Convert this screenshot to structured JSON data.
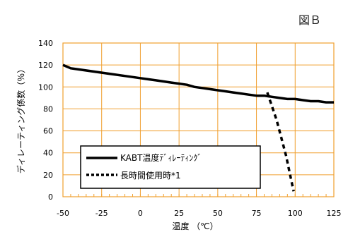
{
  "figure_label": "図Ｂ",
  "chart_data": {
    "type": "line",
    "xlabel": "温度 （℃）",
    "ylabel": "ディレーティング係数（％）",
    "xlim": [
      -50,
      125
    ],
    "ylim": [
      0,
      140
    ],
    "x_ticks": [
      -50,
      -25,
      0,
      25,
      50,
      75,
      100,
      125
    ],
    "y_ticks": [
      0,
      20,
      40,
      60,
      80,
      100,
      120,
      140
    ],
    "grid": true,
    "legend_position": "bottom-left",
    "series": [
      {
        "name": "KABT温度ﾃﾞｨﾚｰﾃｨﾝｸﾞ",
        "style": "solid",
        "color": "#000000",
        "x": [
          -50,
          -45,
          -40,
          -30,
          -20,
          -10,
          0,
          5,
          10,
          15,
          20,
          25,
          30,
          35,
          40,
          45,
          50,
          55,
          60,
          65,
          70,
          75,
          80,
          85,
          90,
          95,
          100,
          105,
          110,
          115,
          120,
          125
        ],
        "y": [
          120,
          117,
          116,
          114,
          112,
          110,
          108,
          107,
          106,
          105,
          104,
          103,
          102,
          100,
          99,
          98,
          97,
          96,
          95,
          94,
          93,
          92,
          92,
          91,
          90,
          89,
          89,
          88,
          87,
          87,
          86,
          86
        ]
      },
      {
        "name": "長時間使用時*1",
        "style": "dashed",
        "color": "#000000",
        "x": [
          82,
          88,
          94,
          99
        ],
        "y": [
          95,
          70,
          38,
          5
        ]
      }
    ]
  }
}
